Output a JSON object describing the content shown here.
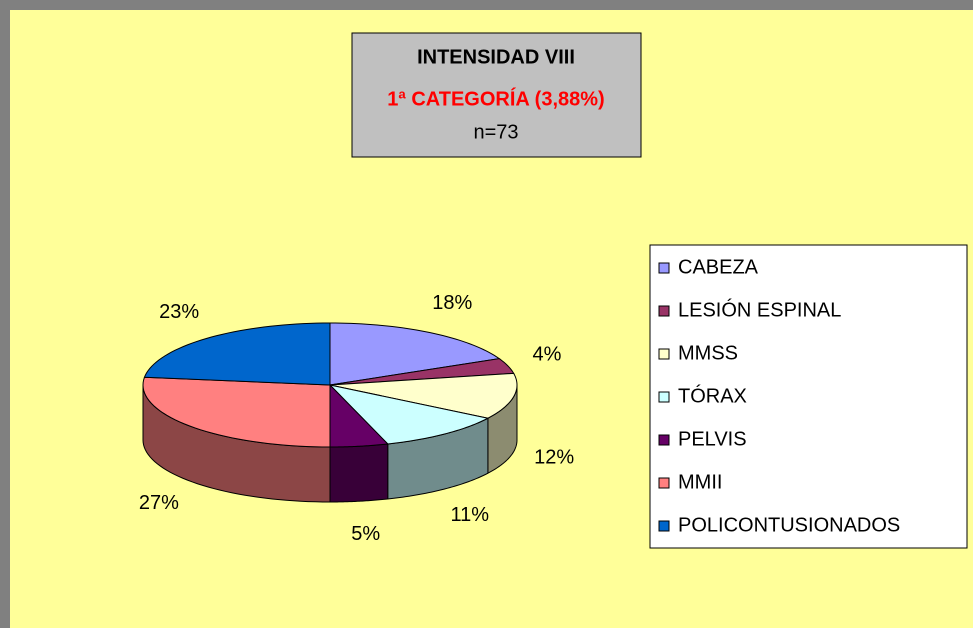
{
  "chart_data": {
    "type": "pie3d",
    "title": "INTENSIDAD VIII",
    "subtitle": "1ª CATEGORÍA (3,88%)",
    "note": "n=73",
    "categories": [
      "CABEZA",
      "LESIÓN ESPINAL",
      "MMSS",
      "TÓRAX",
      "PELVIS",
      "MMII",
      "POLICONTUSIONADOS"
    ],
    "values": [
      18,
      4,
      12,
      11,
      5,
      27,
      23
    ],
    "value_labels": [
      "18%",
      "4%",
      "12%",
      "11%",
      "5%",
      "27%",
      "23%"
    ],
    "colors": [
      "#9999ff",
      "#993366",
      "#ffffcc",
      "#ccffff",
      "#660066",
      "#ff8080",
      "#0066cc"
    ],
    "legend": "right"
  }
}
